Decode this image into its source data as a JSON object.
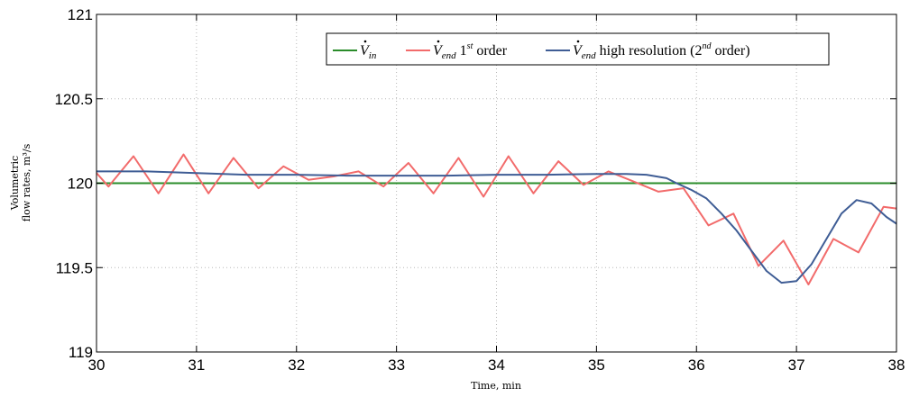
{
  "chart_data": {
    "type": "line",
    "xlabel": "Time, min",
    "ylabel_line1": "Volumetric",
    "ylabel_line2": "flow rates, m³/s",
    "xlim": [
      30,
      38
    ],
    "ylim": [
      119,
      121
    ],
    "x_ticks": [
      "30",
      "31",
      "32",
      "33",
      "34",
      "35",
      "36",
      "37",
      "38"
    ],
    "y_ticks": [
      "119",
      "119.5",
      "120",
      "120.5",
      "121"
    ],
    "grid": true,
    "legend_position": "top-right",
    "series": [
      {
        "name": "V_in",
        "legend_symbol": "V",
        "legend_sub": "in",
        "legend_rest": "",
        "legend_sup": "",
        "legend_tail": "",
        "color": "#2a8c2a",
        "x": [
          30,
          38
        ],
        "y": [
          120.0,
          120.0
        ]
      },
      {
        "name": "V_end 1st order",
        "legend_symbol": "V",
        "legend_sub": "end",
        "legend_rest": " 1",
        "legend_sup": "st",
        "legend_tail": " order",
        "color": "#f26b6b",
        "x": [
          30.0,
          30.12,
          30.37,
          30.62,
          30.87,
          31.12,
          31.37,
          31.62,
          31.87,
          32.12,
          32.37,
          32.62,
          32.87,
          33.12,
          33.37,
          33.62,
          33.87,
          34.12,
          34.37,
          34.62,
          34.87,
          35.12,
          35.37,
          35.62,
          35.87,
          36.12,
          36.37,
          36.62,
          36.87,
          37.12,
          37.37,
          37.62,
          37.87,
          38.0
        ],
        "y": [
          120.06,
          119.98,
          120.16,
          119.94,
          120.17,
          119.94,
          120.15,
          119.97,
          120.1,
          120.02,
          120.04,
          120.07,
          119.98,
          120.12,
          119.94,
          120.15,
          119.92,
          120.16,
          119.94,
          120.13,
          119.99,
          120.07,
          120.01,
          119.95,
          119.97,
          119.75,
          119.82,
          119.51,
          119.66,
          119.4,
          119.67,
          119.59,
          119.86,
          119.85
        ]
      },
      {
        "name": "V_end high resolution (2nd order)",
        "legend_symbol": "V",
        "legend_sub": "end",
        "legend_rest": " high resolution (2",
        "legend_sup": "nd",
        "legend_tail": " order)",
        "color": "#3f5d95",
        "x": [
          30.0,
          30.5,
          31.0,
          31.5,
          32.0,
          32.5,
          33.0,
          33.5,
          34.0,
          34.5,
          35.0,
          35.3,
          35.5,
          35.7,
          35.8,
          35.95,
          36.1,
          36.25,
          36.4,
          36.55,
          36.7,
          36.85,
          37.0,
          37.15,
          37.3,
          37.45,
          37.6,
          37.75,
          37.9,
          38.0
        ],
        "y": [
          120.07,
          120.07,
          120.06,
          120.05,
          120.05,
          120.045,
          120.045,
          120.045,
          120.05,
          120.05,
          120.055,
          120.055,
          120.05,
          120.03,
          120.0,
          119.96,
          119.91,
          119.82,
          119.72,
          119.6,
          119.48,
          119.41,
          119.42,
          119.52,
          119.67,
          119.82,
          119.9,
          119.88,
          119.8,
          119.76
        ]
      }
    ]
  }
}
